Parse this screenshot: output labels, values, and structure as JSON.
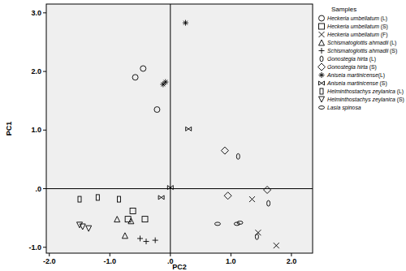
{
  "chart_data": {
    "type": "scatter",
    "x_label": "PC2",
    "y_label": "PC1",
    "legend_title": "Samples",
    "legend": "right",
    "xlim": [
      -2.05,
      2.35
    ],
    "ylim": [
      -1.1,
      3.15
    ],
    "xticks": [
      {
        "value": -2,
        "label": "-2.0"
      },
      {
        "value": -1,
        "label": "-1.0"
      },
      {
        "value": 0,
        "label": ".0"
      },
      {
        "value": 1,
        "label": "1.0"
      },
      {
        "value": 2,
        "label": "2.0"
      }
    ],
    "yticks": [
      {
        "value": -1,
        "label": "-1.0"
      },
      {
        "value": 0,
        "label": ".0"
      },
      {
        "value": 1,
        "label": "1.0"
      },
      {
        "value": 2,
        "label": "2.0"
      },
      {
        "value": 3,
        "label": "3.0"
      }
    ],
    "series": [
      {
        "name": "Heckeria umbellatum (L)",
        "color": "#000000",
        "marker": "circle",
        "x": [
          -0.58,
          -0.45,
          -0.22
        ],
        "values": [
          1.9,
          2.05,
          1.35
        ]
      },
      {
        "name": "Heckeria umbellatum (S)",
        "color": "#000000",
        "marker": "square",
        "x": [
          -0.7,
          -0.62,
          -0.42
        ],
        "values": [
          -0.52,
          -0.38,
          -0.52
        ]
      },
      {
        "name": "Heckeria umbellatum (F)",
        "color": "#000000",
        "marker": "x",
        "x": [
          1.45,
          1.35,
          1.75
        ],
        "values": [
          -0.75,
          -0.18,
          -0.97
        ]
      },
      {
        "name": "Schismatoglottis ahmadii (L)",
        "color": "#000000",
        "marker": "triangle",
        "x": [
          -0.88,
          -0.65,
          -0.75
        ],
        "values": [
          -0.52,
          -0.55,
          -0.8
        ]
      },
      {
        "name": "Schismatoglottis ahmadii (S)",
        "color": "#000000",
        "marker": "plus",
        "x": [
          -0.5,
          -0.4,
          -0.25
        ],
        "values": [
          -0.85,
          -0.9,
          -0.88
        ]
      },
      {
        "name": "Gonostegia hirta (L)",
        "color": "#000000",
        "marker": "ellipse-v",
        "x": [
          1.12,
          1.62,
          1.43
        ],
        "values": [
          0.55,
          -0.25,
          -0.82
        ]
      },
      {
        "name": "Gonostegia hirta (S)",
        "color": "#000000",
        "marker": "diamond",
        "x": [
          0.9,
          0.95,
          1.6
        ],
        "values": [
          0.65,
          -0.12,
          -0.02
        ]
      },
      {
        "name": "Aniseia martinicense(L)",
        "color": "#000000",
        "marker": "star",
        "x": [
          0.25,
          -0.12,
          -0.08
        ],
        "values": [
          2.83,
          1.78,
          1.82
        ]
      },
      {
        "name": "Aniseia martinicense (S)",
        "color": "#000000",
        "marker": "bowtie",
        "x": [
          0.3,
          0.0,
          -0.15
        ],
        "values": [
          1.02,
          0.02,
          -0.15
        ]
      },
      {
        "name": "Helminthostachys zeylanica (L)",
        "color": "#000000",
        "marker": "rect",
        "x": [
          -1.5,
          -1.2,
          -0.85
        ],
        "values": [
          -0.18,
          -0.15,
          -0.18
        ]
      },
      {
        "name": "Helminthostachys zeylanica (S)",
        "color": "#000000",
        "marker": "triangle-down",
        "x": [
          -1.5,
          -1.45,
          -1.35
        ],
        "values": [
          -0.62,
          -0.65,
          -0.68
        ]
      },
      {
        "name": "Lasia spinosa",
        "color": "#000000",
        "marker": "ellipse-h",
        "x": [
          0.78,
          1.1,
          1.15
        ],
        "values": [
          -0.6,
          -0.6,
          -0.58
        ]
      }
    ]
  }
}
